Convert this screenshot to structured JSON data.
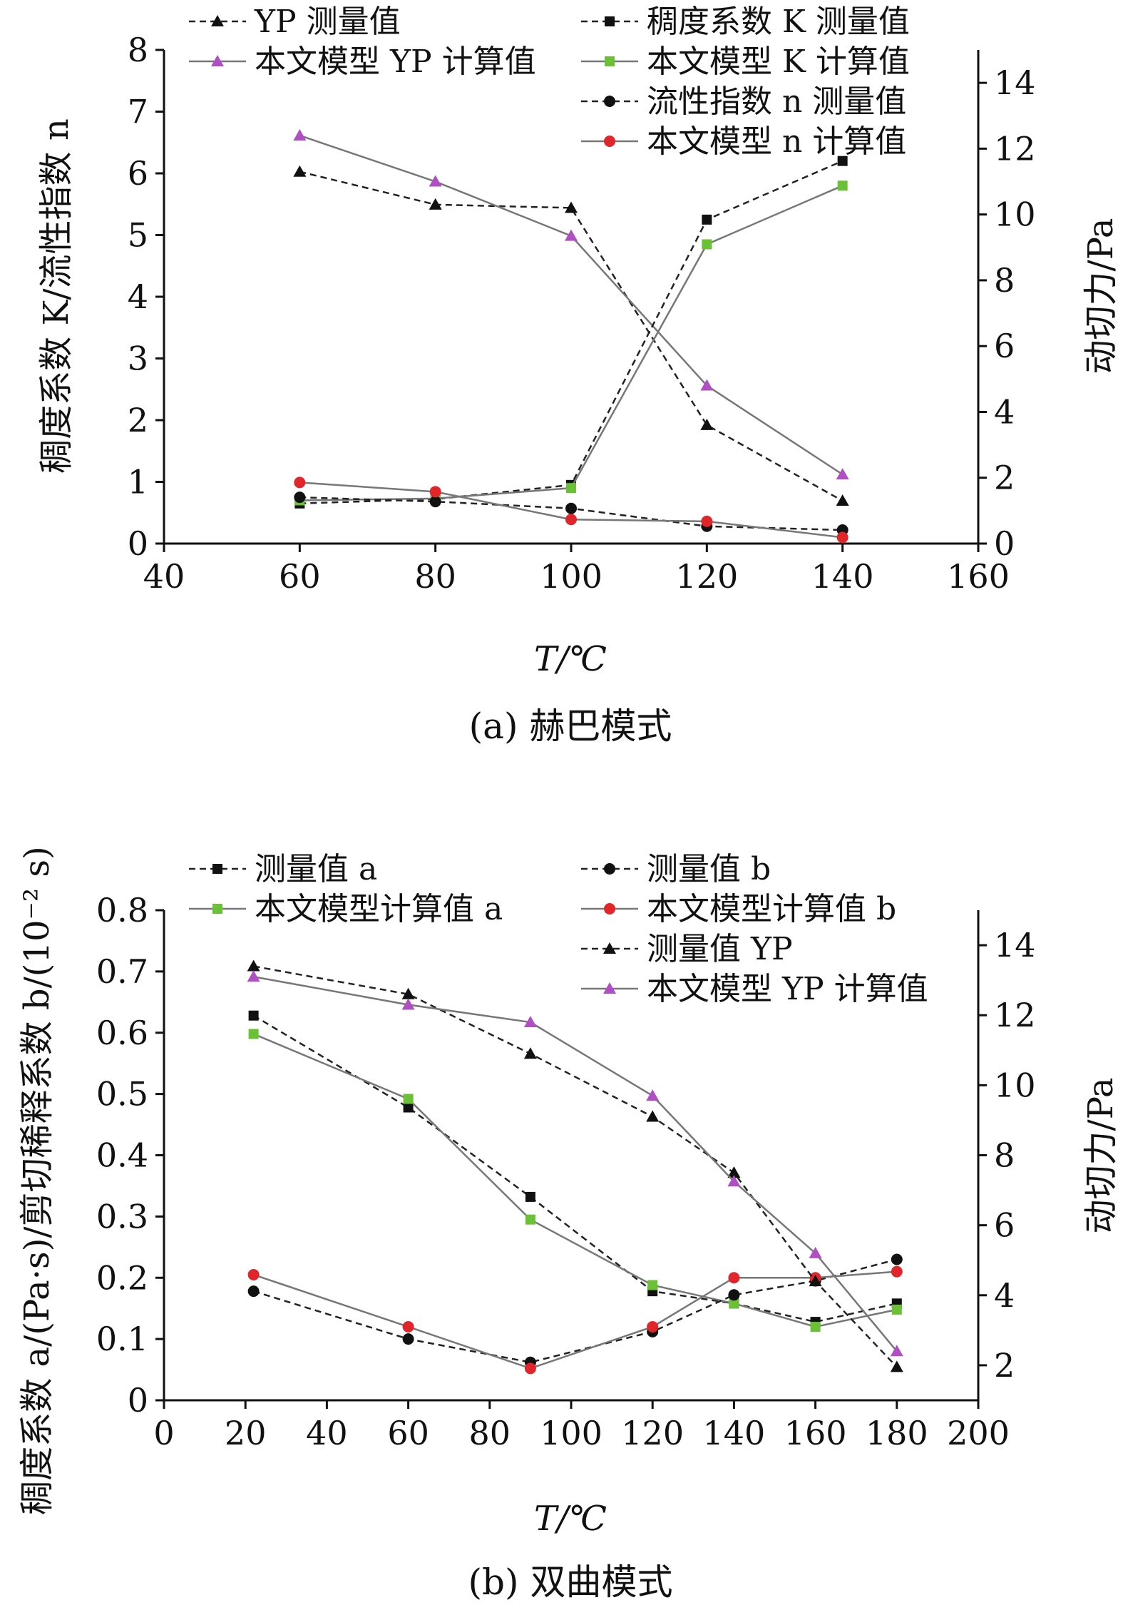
{
  "chart_data": [
    {
      "type": "line",
      "caption": "(a) 赫巴模式",
      "xlabel": "T/℃",
      "ylabel_left": "稠度系数 K/流性指数 n",
      "ylabel_right": "动切力/Pa",
      "xlim": [
        40,
        160
      ],
      "ylim_left": [
        0,
        8
      ],
      "ylim_right": [
        0,
        15
      ],
      "x_ticks": [
        40,
        60,
        80,
        100,
        120,
        140,
        160
      ],
      "y_left_ticks": [
        0,
        1,
        2,
        3,
        4,
        5,
        6,
        7,
        8
      ],
      "y_right_ticks": [
        0,
        2,
        4,
        6,
        8,
        10,
        12,
        14
      ],
      "legend_position": "top",
      "series": [
        {
          "name": "YP 测量值",
          "axis": "right",
          "marker": "triangle",
          "color": "#111111",
          "dash": true,
          "x": [
            60,
            80,
            100,
            120,
            140
          ],
          "values": [
            11.3,
            10.3,
            10.2,
            3.6,
            1.3
          ]
        },
        {
          "name": "本文模型 YP 计算值",
          "axis": "right",
          "marker": "triangle",
          "color": "#b04fc4",
          "dash": false,
          "x": [
            60,
            80,
            100,
            120,
            140
          ],
          "values": [
            12.4,
            11.0,
            9.35,
            4.8,
            2.1
          ]
        },
        {
          "name": "稠度系数 K 测量值",
          "axis": "left",
          "marker": "square",
          "color": "#111111",
          "dash": true,
          "x": [
            60,
            80,
            100,
            120,
            140
          ],
          "values": [
            0.65,
            0.72,
            0.95,
            5.25,
            6.2
          ]
        },
        {
          "name": "本文模型 K 计算值",
          "axis": "left",
          "marker": "square",
          "color": "#6ac136",
          "dash": false,
          "x": [
            60,
            80,
            100,
            120,
            140
          ],
          "values": [
            0.7,
            0.73,
            0.9,
            4.85,
            5.8
          ]
        },
        {
          "name": "流性指数 n 测量值",
          "axis": "left",
          "marker": "circle",
          "color": "#111111",
          "dash": true,
          "x": [
            60,
            80,
            100,
            120,
            140
          ],
          "values": [
            0.75,
            0.68,
            0.57,
            0.28,
            0.22
          ]
        },
        {
          "name": "本文模型 n 计算值",
          "axis": "left",
          "marker": "circle",
          "color": "#e0252b",
          "dash": false,
          "x": [
            60,
            80,
            100,
            120,
            140
          ],
          "values": [
            0.99,
            0.84,
            0.39,
            0.36,
            0.1
          ]
        }
      ]
    },
    {
      "type": "line",
      "caption": "(b) 双曲模式",
      "xlabel": "T/℃",
      "ylabel_left": "稠度系数 a/(Pa·s)/剪切稀释系数 b/(10⁻² s)",
      "ylabel_right": "动切力/Pa",
      "xlim": [
        0,
        200
      ],
      "ylim_left": [
        0,
        0.8
      ],
      "ylim_right": [
        1,
        15
      ],
      "x_ticks": [
        0,
        20,
        40,
        60,
        80,
        100,
        120,
        140,
        160,
        180,
        200
      ],
      "y_left_ticks": [
        0,
        0.1,
        0.2,
        0.3,
        0.4,
        0.5,
        0.6,
        0.7,
        0.8
      ],
      "y_right_ticks": [
        2,
        4,
        6,
        8,
        10,
        12,
        14
      ],
      "legend_position": "top",
      "series": [
        {
          "name": "测量值 a",
          "axis": "left",
          "marker": "square",
          "color": "#111111",
          "dash": true,
          "x": [
            22,
            60,
            90,
            120,
            140,
            160,
            180
          ],
          "values": [
            0.628,
            0.478,
            0.332,
            0.178,
            0.158,
            0.128,
            0.158
          ]
        },
        {
          "name": "本文模型计算值 a",
          "axis": "left",
          "marker": "square",
          "color": "#6ac136",
          "dash": false,
          "x": [
            22,
            60,
            90,
            120,
            140,
            160,
            180
          ],
          "values": [
            0.598,
            0.492,
            0.295,
            0.188,
            0.158,
            0.12,
            0.148
          ]
        },
        {
          "name": "测量值 b",
          "axis": "left",
          "marker": "circle",
          "color": "#111111",
          "dash": true,
          "x": [
            22,
            60,
            90,
            120,
            140,
            160,
            180
          ],
          "values": [
            0.178,
            0.1,
            0.062,
            0.112,
            0.172,
            0.195,
            0.23
          ]
        },
        {
          "name": "本文模型计算值 b",
          "axis": "left",
          "marker": "circle",
          "color": "#e0252b",
          "dash": false,
          "x": [
            22,
            60,
            90,
            120,
            140,
            160,
            180
          ],
          "values": [
            0.205,
            0.12,
            0.052,
            0.12,
            0.2,
            0.2,
            0.21
          ]
        },
        {
          "name": "测量值 YP",
          "axis": "right",
          "marker": "triangle",
          "color": "#111111",
          "dash": true,
          "x": [
            22,
            60,
            90,
            120,
            140,
            160,
            180
          ],
          "values": [
            13.4,
            12.6,
            10.9,
            9.1,
            7.5,
            4.4,
            1.95
          ]
        },
        {
          "name": "本文模型 YP 计算值",
          "axis": "right",
          "marker": "triangle",
          "color": "#b04fc4",
          "dash": false,
          "x": [
            22,
            60,
            90,
            120,
            140,
            160,
            180
          ],
          "values": [
            13.1,
            12.3,
            11.8,
            9.7,
            7.25,
            5.2,
            2.4
          ]
        }
      ]
    }
  ]
}
